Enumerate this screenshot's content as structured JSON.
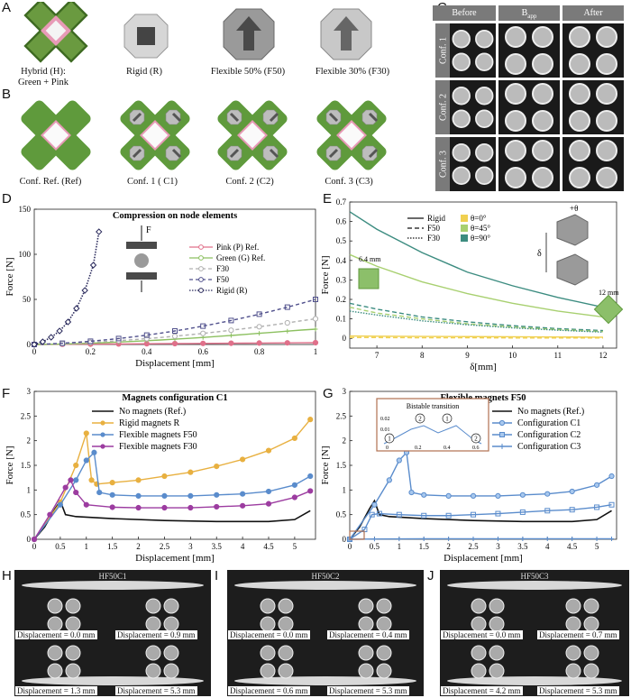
{
  "panel_labels": {
    "A": "A",
    "B": "B",
    "C": "C",
    "D": "D",
    "E": "E",
    "F": "F",
    "G": "G",
    "H": "H",
    "I": "I",
    "J": "J"
  },
  "panelA": {
    "captions": [
      "Hybrid (H):",
      "Green + Pink",
      "Rigid (R)",
      "Flexible 50% (F50)",
      "Flexible 30% (F30)"
    ]
  },
  "panelB": {
    "captions": [
      "Conf. Ref. (Ref)",
      "Conf. 1 ( C1)",
      "Conf. 2 (C2)",
      "Conf. 3 (C3)"
    ]
  },
  "panelC": {
    "headers": [
      "Before",
      "B",
      "app",
      "After"
    ],
    "rows": [
      "Conf. 1",
      "Conf. 2",
      "Conf. 3"
    ]
  },
  "panelH": {
    "title": "HF50C1",
    "captions": [
      "Displacement = 0.0 mm",
      "Displacement = 0.9 mm",
      "Displacement = 1.3 mm",
      "Displacement = 5.3 mm"
    ]
  },
  "panelI": {
    "title": "HF50C2",
    "captions": [
      "Displacement = 0.0 mm",
      "Displacement = 0.4 mm",
      "Displacement = 0.6 mm",
      "Displacement = 5.3 mm"
    ]
  },
  "panelJ": {
    "title": "HF50C3",
    "captions": [
      "Displacement = 0.0 mm",
      "Displacement = 0.7 mm",
      "Displacement = 4.2 mm",
      "Displacement = 5.3 mm"
    ]
  },
  "chart_data": [
    {
      "id": "D",
      "type": "line",
      "title": "Compression on node elements",
      "xlabel": "Displacement [mm]",
      "ylabel": "Force [N]",
      "xlim": [
        0,
        1
      ],
      "ylim": [
        0,
        150
      ],
      "xticks": [
        "0",
        "0.2",
        "0.4",
        "0.6",
        "0.8",
        "1"
      ],
      "yticks": [
        "0",
        "50",
        "100",
        "150"
      ],
      "annotation": "F",
      "legend": [
        "Pink (P) Ref.",
        "Green (G) Ref.",
        "F30",
        "F50",
        "Rigid (R)"
      ],
      "colors": [
        "#e0708a",
        "#8cc060",
        "#b0b0b0",
        "#50508c",
        "#2a2a5c"
      ],
      "x": [
        0,
        0.05,
        0.1,
        0.15,
        0.2,
        0.25,
        0.3,
        0.35,
        0.4,
        0.45,
        0.5,
        0.55,
        0.6,
        0.65,
        0.7,
        0.75,
        0.8,
        0.85,
        0.9,
        0.95,
        1
      ],
      "series": [
        {
          "name": "Pink (P) Ref.",
          "values": [
            0,
            0.1,
            0.2,
            0.3,
            0.4,
            0.5,
            0.6,
            0.7,
            0.8,
            0.9,
            1,
            1.1,
            1.2,
            1.3,
            1.4,
            1.5,
            1.6,
            1.7,
            1.8,
            1.9,
            2
          ]
        },
        {
          "name": "Green (G) Ref.",
          "values": [
            0,
            0.2,
            0.5,
            0.9,
            1.4,
            2,
            2.7,
            3.4,
            4.2,
            5,
            5.9,
            6.8,
            7.8,
            8.9,
            10,
            11.2,
            12.4,
            13.6,
            14.8,
            16,
            17
          ]
        },
        {
          "name": "F30",
          "values": [
            0,
            0.4,
            0.9,
            1.5,
            2.3,
            3.2,
            4.2,
            5.3,
            6.5,
            7.8,
            9.2,
            10.7,
            12.3,
            14,
            15.8,
            17.7,
            19.7,
            21.8,
            24,
            26.3,
            28.5
          ]
        },
        {
          "name": "F50",
          "values": [
            0,
            0.6,
            1.4,
            2.4,
            3.6,
            5,
            6.6,
            8.4,
            10.4,
            12.6,
            15,
            17.6,
            20.4,
            23.4,
            26.6,
            30,
            33.6,
            37.4,
            41.4,
            45.6,
            50
          ]
        },
        {
          "name": "Rigid (R)",
          "x": [
            0,
            0.03,
            0.06,
            0.09,
            0.12,
            0.15,
            0.18,
            0.21,
            0.23
          ],
          "values": [
            0,
            3,
            8,
            15,
            25,
            40,
            60,
            88,
            125
          ]
        }
      ]
    },
    {
      "id": "E",
      "type": "line",
      "xlabel": "δ[mm]",
      "ylabel": "Force [N]",
      "xlim": [
        6.4,
        12.3
      ],
      "ylim": [
        -0.05,
        0.7
      ],
      "xticks": [
        "7",
        "8",
        "9",
        "10",
        "11",
        "12"
      ],
      "yticks": [
        "0",
        "0.1",
        "0.2",
        "0.3",
        "0.4",
        "0.5",
        "0.6",
        "0.7"
      ],
      "legend_style": [
        "Rigid",
        "F50",
        "F30"
      ],
      "legend_angle": [
        "θ=0°",
        "θ=45°",
        "θ=90°"
      ],
      "colors": [
        "#f0d050",
        "#a8d070",
        "#3c8c80"
      ],
      "annotations": [
        "6.4 mm",
        "12 mm",
        "+θ",
        "δ"
      ],
      "x": [
        6.4,
        7,
        8,
        9,
        10,
        11,
        12
      ],
      "series": [
        {
          "name": "Rigid θ=90°",
          "values": [
            0.65,
            0.56,
            0.44,
            0.34,
            0.27,
            0.21,
            0.16
          ]
        },
        {
          "name": "Rigid θ=45°",
          "values": [
            0.43,
            0.37,
            0.29,
            0.23,
            0.18,
            0.14,
            0.11
          ]
        },
        {
          "name": "F50 θ=90°",
          "values": [
            0.18,
            0.15,
            0.11,
            0.085,
            0.065,
            0.05,
            0.04
          ]
        },
        {
          "name": "F50 θ=45°",
          "values": [
            0.16,
            0.13,
            0.1,
            0.075,
            0.058,
            0.045,
            0.035
          ]
        },
        {
          "name": "F30 θ=90°",
          "values": [
            0.14,
            0.12,
            0.09,
            0.07,
            0.054,
            0.042,
            0.032
          ]
        },
        {
          "name": "Rigid θ=0°",
          "values": [
            0.012,
            0.011,
            0.01,
            0.009,
            0.008,
            0.007,
            0.006
          ]
        },
        {
          "name": "F50 θ=0°",
          "values": [
            0.004,
            0.004,
            0.003,
            0.003,
            0.002,
            0.002,
            0.002
          ]
        }
      ]
    },
    {
      "id": "F",
      "type": "line",
      "title": "Magnets configuration C1",
      "xlabel": "Displacement [mm]",
      "ylabel": "Force [N]",
      "xlim": [
        0,
        5.4
      ],
      "ylim": [
        0,
        3
      ],
      "xticks": [
        "0",
        "0.5",
        "1",
        "1.5",
        "2",
        "2.5",
        "3",
        "3.5",
        "4",
        "4.5",
        "5"
      ],
      "yticks": [
        "0",
        "0.5",
        "1",
        "1.5",
        "2",
        "2.5",
        "3"
      ],
      "legend": [
        "No magnets (Ref.)",
        "Rigid magnets R",
        "Flexible magnets F50",
        "Flexible magnets F30"
      ],
      "colors": [
        "#111111",
        "#e8b040",
        "#5a8ccc",
        "#9c3ca0"
      ],
      "series": [
        {
          "name": "No magnets (Ref.)",
          "x": [
            0,
            0.2,
            0.4,
            0.5,
            0.6,
            0.8,
            1.5,
            2.5,
            3.5,
            4.5,
            5,
            5.3
          ],
          "values": [
            0,
            0.25,
            0.62,
            0.78,
            0.5,
            0.46,
            0.42,
            0.38,
            0.36,
            0.36,
            0.4,
            0.58
          ]
        },
        {
          "name": "Rigid magnets R",
          "x": [
            0,
            0.5,
            0.8,
            1.0,
            1.1,
            1.2,
            1.5,
            2,
            2.5,
            3,
            3.5,
            4,
            4.5,
            5,
            5.3
          ],
          "values": [
            0,
            0.75,
            1.5,
            2.15,
            1.2,
            1.12,
            1.15,
            1.2,
            1.28,
            1.36,
            1.48,
            1.62,
            1.8,
            2.05,
            2.43
          ]
        },
        {
          "name": "Flexible magnets F50",
          "x": [
            0,
            0.5,
            0.8,
            1.0,
            1.15,
            1.25,
            1.5,
            2,
            2.5,
            3,
            3.5,
            4,
            4.5,
            5,
            5.3
          ],
          "values": [
            0,
            0.7,
            1.2,
            1.6,
            1.76,
            0.95,
            0.9,
            0.88,
            0.88,
            0.88,
            0.9,
            0.92,
            0.97,
            1.1,
            1.28
          ]
        },
        {
          "name": "Flexible magnets F30",
          "x": [
            0,
            0.3,
            0.6,
            0.7,
            0.8,
            1.0,
            1.5,
            2,
            2.5,
            3,
            3.5,
            4,
            4.5,
            5,
            5.3
          ],
          "values": [
            0,
            0.5,
            1.05,
            1.2,
            0.95,
            0.7,
            0.65,
            0.64,
            0.64,
            0.64,
            0.66,
            0.68,
            0.72,
            0.85,
            0.98
          ]
        }
      ]
    },
    {
      "id": "G",
      "type": "line",
      "title": "Flexible magnets F50",
      "xlabel": "Displacement [mm]",
      "ylabel": "Force [N]",
      "xlim": [
        0,
        5.4
      ],
      "ylim": [
        0,
        3
      ],
      "xticks": [
        "0",
        "0.5",
        "1",
        "1.5",
        "2",
        "2.5",
        "3",
        "3.5",
        "4",
        "4.5",
        "5"
      ],
      "yticks": [
        "0",
        "0.5",
        "1",
        "1.5",
        "2",
        "2.5",
        "3"
      ],
      "legend": [
        "No magnets (Ref.)",
        "Configuration C1",
        "Configuration C2",
        "Configuration C3"
      ],
      "colors": [
        "#111111",
        "#5a8ccc",
        "#5a8ccc",
        "#5a8ccc"
      ],
      "inset_title": "Bistable transition",
      "inset_yticks": [
        "0.02",
        "0.01"
      ],
      "inset_xticks": [
        "0",
        "0.2",
        "0.4",
        "0.6"
      ],
      "inset_marks": [
        "1",
        "2",
        "1",
        "2"
      ],
      "series": [
        {
          "name": "No magnets (Ref.)",
          "x": [
            0,
            0.2,
            0.4,
            0.5,
            0.6,
            0.8,
            1.5,
            2.5,
            3.5,
            4.5,
            5,
            5.3
          ],
          "values": [
            0,
            0.25,
            0.62,
            0.78,
            0.5,
            0.46,
            0.42,
            0.38,
            0.36,
            0.36,
            0.4,
            0.58
          ]
        },
        {
          "name": "Configuration C1",
          "x": [
            0,
            0.5,
            0.8,
            1.0,
            1.15,
            1.25,
            1.5,
            2,
            2.5,
            3,
            3.5,
            4,
            4.5,
            5,
            5.3
          ],
          "values": [
            0,
            0.7,
            1.2,
            1.6,
            1.76,
            0.95,
            0.9,
            0.88,
            0.88,
            0.88,
            0.9,
            0.92,
            0.97,
            1.1,
            1.28
          ]
        },
        {
          "name": "Configuration C2",
          "x": [
            0,
            0.3,
            0.45,
            0.6,
            1,
            1.5,
            2,
            2.5,
            3,
            3.5,
            4,
            4.5,
            5,
            5.3
          ],
          "values": [
            0,
            0.2,
            0.5,
            0.52,
            0.5,
            0.48,
            0.48,
            0.5,
            0.52,
            0.55,
            0.58,
            0.6,
            0.65,
            0.7
          ]
        },
        {
          "name": "Configuration C3",
          "x": [
            0,
            0.5,
            1,
            1.5,
            2,
            2.5,
            3,
            3.5,
            4,
            4.5,
            5,
            5.3
          ],
          "values": [
            0,
            0.005,
            0.008,
            0.01,
            0.01,
            0.01,
            0.01,
            0.01,
            0.01,
            0.01,
            0.01,
            0.01
          ]
        }
      ]
    }
  ]
}
